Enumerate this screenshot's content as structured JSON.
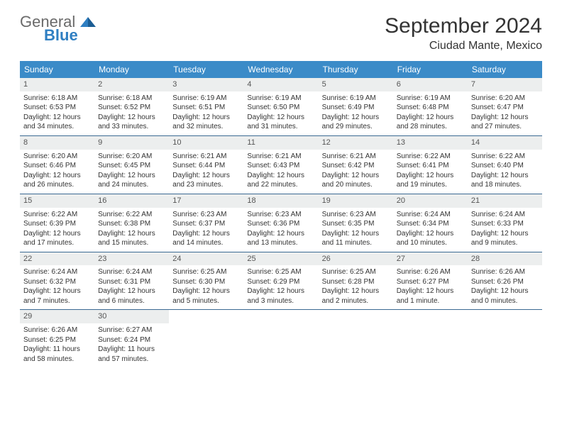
{
  "logo": {
    "general": "General",
    "blue": "Blue"
  },
  "title": "September 2024",
  "location": "Ciudad Mante, Mexico",
  "colors": {
    "header_bg": "#3b8bc8",
    "header_text": "#ffffff",
    "daynum_bg": "#eceeee",
    "border": "#3b6a93",
    "logo_gray": "#6a6a6a",
    "logo_blue": "#2f7fc2"
  },
  "weekdays": [
    "Sunday",
    "Monday",
    "Tuesday",
    "Wednesday",
    "Thursday",
    "Friday",
    "Saturday"
  ],
  "weeks": [
    [
      {
        "n": "1",
        "sr": "Sunrise: 6:18 AM",
        "ss": "Sunset: 6:53 PM",
        "dl": "Daylight: 12 hours and 34 minutes."
      },
      {
        "n": "2",
        "sr": "Sunrise: 6:18 AM",
        "ss": "Sunset: 6:52 PM",
        "dl": "Daylight: 12 hours and 33 minutes."
      },
      {
        "n": "3",
        "sr": "Sunrise: 6:19 AM",
        "ss": "Sunset: 6:51 PM",
        "dl": "Daylight: 12 hours and 32 minutes."
      },
      {
        "n": "4",
        "sr": "Sunrise: 6:19 AM",
        "ss": "Sunset: 6:50 PM",
        "dl": "Daylight: 12 hours and 31 minutes."
      },
      {
        "n": "5",
        "sr": "Sunrise: 6:19 AM",
        "ss": "Sunset: 6:49 PM",
        "dl": "Daylight: 12 hours and 29 minutes."
      },
      {
        "n": "6",
        "sr": "Sunrise: 6:19 AM",
        "ss": "Sunset: 6:48 PM",
        "dl": "Daylight: 12 hours and 28 minutes."
      },
      {
        "n": "7",
        "sr": "Sunrise: 6:20 AM",
        "ss": "Sunset: 6:47 PM",
        "dl": "Daylight: 12 hours and 27 minutes."
      }
    ],
    [
      {
        "n": "8",
        "sr": "Sunrise: 6:20 AM",
        "ss": "Sunset: 6:46 PM",
        "dl": "Daylight: 12 hours and 26 minutes."
      },
      {
        "n": "9",
        "sr": "Sunrise: 6:20 AM",
        "ss": "Sunset: 6:45 PM",
        "dl": "Daylight: 12 hours and 24 minutes."
      },
      {
        "n": "10",
        "sr": "Sunrise: 6:21 AM",
        "ss": "Sunset: 6:44 PM",
        "dl": "Daylight: 12 hours and 23 minutes."
      },
      {
        "n": "11",
        "sr": "Sunrise: 6:21 AM",
        "ss": "Sunset: 6:43 PM",
        "dl": "Daylight: 12 hours and 22 minutes."
      },
      {
        "n": "12",
        "sr": "Sunrise: 6:21 AM",
        "ss": "Sunset: 6:42 PM",
        "dl": "Daylight: 12 hours and 20 minutes."
      },
      {
        "n": "13",
        "sr": "Sunrise: 6:22 AM",
        "ss": "Sunset: 6:41 PM",
        "dl": "Daylight: 12 hours and 19 minutes."
      },
      {
        "n": "14",
        "sr": "Sunrise: 6:22 AM",
        "ss": "Sunset: 6:40 PM",
        "dl": "Daylight: 12 hours and 18 minutes."
      }
    ],
    [
      {
        "n": "15",
        "sr": "Sunrise: 6:22 AM",
        "ss": "Sunset: 6:39 PM",
        "dl": "Daylight: 12 hours and 17 minutes."
      },
      {
        "n": "16",
        "sr": "Sunrise: 6:22 AM",
        "ss": "Sunset: 6:38 PM",
        "dl": "Daylight: 12 hours and 15 minutes."
      },
      {
        "n": "17",
        "sr": "Sunrise: 6:23 AM",
        "ss": "Sunset: 6:37 PM",
        "dl": "Daylight: 12 hours and 14 minutes."
      },
      {
        "n": "18",
        "sr": "Sunrise: 6:23 AM",
        "ss": "Sunset: 6:36 PM",
        "dl": "Daylight: 12 hours and 13 minutes."
      },
      {
        "n": "19",
        "sr": "Sunrise: 6:23 AM",
        "ss": "Sunset: 6:35 PM",
        "dl": "Daylight: 12 hours and 11 minutes."
      },
      {
        "n": "20",
        "sr": "Sunrise: 6:24 AM",
        "ss": "Sunset: 6:34 PM",
        "dl": "Daylight: 12 hours and 10 minutes."
      },
      {
        "n": "21",
        "sr": "Sunrise: 6:24 AM",
        "ss": "Sunset: 6:33 PM",
        "dl": "Daylight: 12 hours and 9 minutes."
      }
    ],
    [
      {
        "n": "22",
        "sr": "Sunrise: 6:24 AM",
        "ss": "Sunset: 6:32 PM",
        "dl": "Daylight: 12 hours and 7 minutes."
      },
      {
        "n": "23",
        "sr": "Sunrise: 6:24 AM",
        "ss": "Sunset: 6:31 PM",
        "dl": "Daylight: 12 hours and 6 minutes."
      },
      {
        "n": "24",
        "sr": "Sunrise: 6:25 AM",
        "ss": "Sunset: 6:30 PM",
        "dl": "Daylight: 12 hours and 5 minutes."
      },
      {
        "n": "25",
        "sr": "Sunrise: 6:25 AM",
        "ss": "Sunset: 6:29 PM",
        "dl": "Daylight: 12 hours and 3 minutes."
      },
      {
        "n": "26",
        "sr": "Sunrise: 6:25 AM",
        "ss": "Sunset: 6:28 PM",
        "dl": "Daylight: 12 hours and 2 minutes."
      },
      {
        "n": "27",
        "sr": "Sunrise: 6:26 AM",
        "ss": "Sunset: 6:27 PM",
        "dl": "Daylight: 12 hours and 1 minute."
      },
      {
        "n": "28",
        "sr": "Sunrise: 6:26 AM",
        "ss": "Sunset: 6:26 PM",
        "dl": "Daylight: 12 hours and 0 minutes."
      }
    ],
    [
      {
        "n": "29",
        "sr": "Sunrise: 6:26 AM",
        "ss": "Sunset: 6:25 PM",
        "dl": "Daylight: 11 hours and 58 minutes."
      },
      {
        "n": "30",
        "sr": "Sunrise: 6:27 AM",
        "ss": "Sunset: 6:24 PM",
        "dl": "Daylight: 11 hours and 57 minutes."
      },
      null,
      null,
      null,
      null,
      null
    ]
  ]
}
